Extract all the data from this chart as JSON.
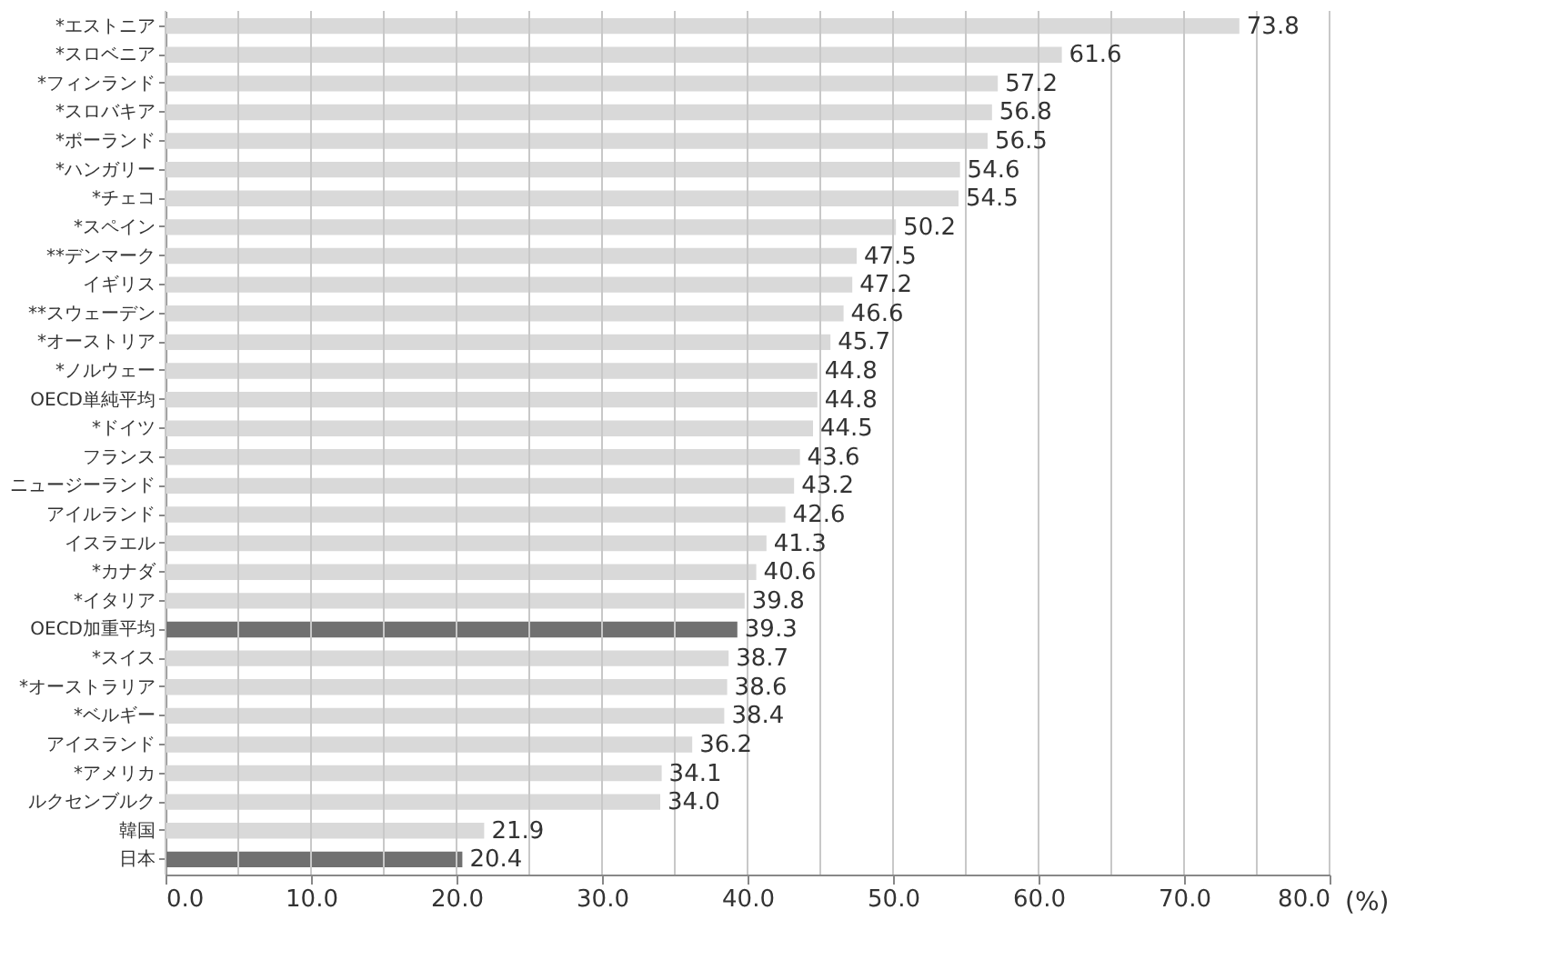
{
  "chart_data": {
    "type": "bar",
    "orientation": "horizontal",
    "xlabel": "(%)",
    "categories": [
      "*エストニア",
      "*スロベニア",
      "*フィンランド",
      "*スロバキア",
      "*ポーランド",
      "*ハンガリー",
      "*チェコ",
      "*スペイン",
      "**デンマーク",
      "イギリス",
      "**スウェーデン",
      "*オーストリア",
      "*ノルウェー",
      "OECD単純平均",
      "*ドイツ",
      "フランス",
      "ニュージーランド",
      "アイルランド",
      "イスラエル",
      "*カナダ",
      "*イタリア",
      "OECD加重平均",
      "*スイス",
      "*オーストラリア",
      "*ベルギー",
      "アイスランド",
      "*アメリカ",
      "ルクセンブルク",
      "韓国",
      "日本"
    ],
    "values": [
      73.8,
      61.6,
      57.2,
      56.8,
      56.5,
      54.6,
      54.5,
      50.2,
      47.5,
      47.2,
      46.6,
      45.7,
      44.8,
      44.8,
      44.5,
      43.6,
      43.2,
      42.6,
      41.3,
      40.6,
      39.8,
      39.3,
      38.7,
      38.6,
      38.4,
      36.2,
      34.1,
      34.0,
      21.9,
      20.4
    ],
    "colors": [
      "#d9d9d9",
      "#d9d9d9",
      "#d9d9d9",
      "#d9d9d9",
      "#d9d9d9",
      "#d9d9d9",
      "#d9d9d9",
      "#d9d9d9",
      "#d9d9d9",
      "#d9d9d9",
      "#d9d9d9",
      "#d9d9d9",
      "#d9d9d9",
      "#d9d9d9",
      "#d9d9d9",
      "#d9d9d9",
      "#d9d9d9",
      "#d9d9d9",
      "#d9d9d9",
      "#d9d9d9",
      "#d9d9d9",
      "#707070",
      "#d9d9d9",
      "#d9d9d9",
      "#d9d9d9",
      "#d9d9d9",
      "#d9d9d9",
      "#d9d9d9",
      "#d9d9d9",
      "#707070"
    ],
    "value_labels": [
      "73.8",
      "61.6",
      "57.2",
      "56.8",
      "56.5",
      "54.6",
      "54.5",
      "50.2",
      "47.5",
      "47.2",
      "46.6",
      "45.7",
      "44.8",
      "44.8",
      "44.5",
      "43.6",
      "43.2",
      "42.6",
      "41.3",
      "40.6",
      "39.8",
      "39.3",
      "38.7",
      "38.6",
      "38.4",
      "36.2",
      "34.1",
      "34.0",
      "21.9",
      "20.4"
    ],
    "xlim": [
      0,
      80
    ],
    "xticks": [
      {
        "value": 0,
        "label": "0.0"
      },
      {
        "value": 5,
        "label": null
      },
      {
        "value": 10,
        "label": "10.0"
      },
      {
        "value": 15,
        "label": null
      },
      {
        "value": 20,
        "label": "20.0"
      },
      {
        "value": 25,
        "label": null
      },
      {
        "value": 30,
        "label": "30.0"
      },
      {
        "value": 35,
        "label": null
      },
      {
        "value": 40,
        "label": "40.0"
      },
      {
        "value": 45,
        "label": null
      },
      {
        "value": 50,
        "label": "50.0"
      },
      {
        "value": 55,
        "label": null
      },
      {
        "value": 60,
        "label": "60.0"
      },
      {
        "value": 65,
        "label": null
      },
      {
        "value": 70,
        "label": "70.0"
      },
      {
        "value": 75,
        "label": null
      },
      {
        "value": 80,
        "label": "80.0"
      }
    ],
    "grid": "x"
  }
}
